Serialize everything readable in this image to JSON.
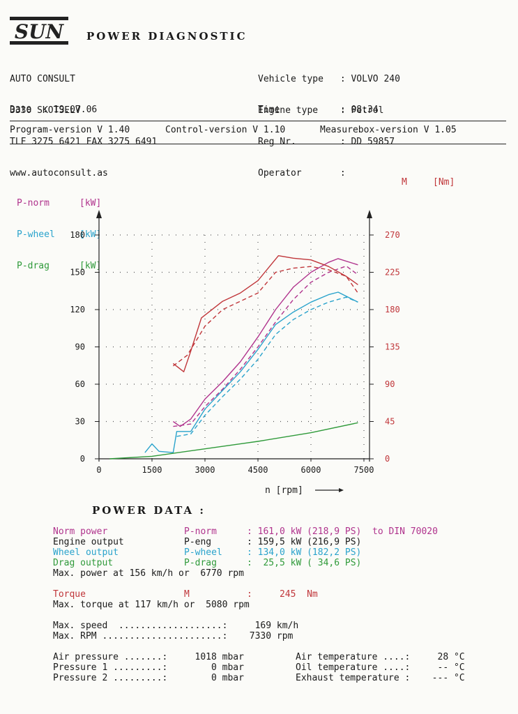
{
  "header": {
    "logo_text": "SUN",
    "title": "POWER DIAGNOSTIC",
    "company": [
      "AUTO CONSULT",
      "3330 SKOTSELV",
      "TLF 3275 6421 FAX 3275 6491",
      "www.autoconsult.as"
    ],
    "date_label": "Date  :",
    "date_value": "19.07.06",
    "vehicle": [
      {
        "label": "Vehicle type",
        "value": "VOLVO 240"
      },
      {
        "label": "Engine type",
        "value": "Petrol"
      },
      {
        "label": "Reg Nr.",
        "value": "DD 59857"
      },
      {
        "label": "Operator",
        "value": ""
      }
    ],
    "time_label": "Time",
    "time_value": "08:34",
    "versions": [
      "Program-version V 1.40",
      "Control-version V 1.10",
      "Measurebox-version V 1.05"
    ]
  },
  "legend": [
    {
      "name": "P-norm",
      "unit": "[kW]",
      "color": "#b0338d"
    },
    {
      "name": "P-wheel",
      "unit": "[kW]",
      "color": "#2aa3cc"
    },
    {
      "name": "P-drag",
      "unit": "[kW]",
      "color": "#2f9a3a"
    }
  ],
  "right_legend": {
    "name": "M",
    "unit": "[Nm]",
    "color": "#c0363a"
  },
  "chart_data": {
    "type": "line",
    "xlabel": "n [rpm]",
    "xlim": [
      0,
      7500
    ],
    "x_ticks": [
      "0",
      "1500",
      "3000",
      "4500",
      "6000",
      "7500"
    ],
    "ylim": [
      0,
      180
    ],
    "y_ticks": [
      "0",
      "30",
      "60",
      "90",
      "120",
      "150",
      "180"
    ],
    "y2lim": [
      0,
      270
    ],
    "y2_ticks": [
      "0",
      "45",
      "90",
      "135",
      "180",
      "225",
      "270"
    ],
    "grid": "dotted",
    "series": [
      {
        "name": "P-norm",
        "axis": "left",
        "color": "#b0338d",
        "style": "solid",
        "x": [
          2100,
          2300,
          2600,
          3000,
          3500,
          4000,
          4500,
          5000,
          5500,
          6000,
          6500,
          6770,
          7330
        ],
        "y": [
          30,
          26,
          32,
          48,
          62,
          78,
          98,
          120,
          138,
          150,
          158,
          161,
          156
        ]
      },
      {
        "name": "P-norm",
        "axis": "left",
        "color": "#b0338d",
        "style": "dashed",
        "x": [
          2100,
          2600,
          3000,
          3500,
          4000,
          4500,
          5000,
          5500,
          6000,
          6500,
          7000,
          7330
        ],
        "y": [
          26,
          28,
          42,
          56,
          72,
          90,
          110,
          128,
          142,
          150,
          155,
          148
        ]
      },
      {
        "name": "P-wheel",
        "axis": "left",
        "color": "#2aa3cc",
        "style": "solid",
        "x": [
          1300,
          1500,
          1700,
          2100,
          2200,
          2600,
          3000,
          3500,
          4000,
          4500,
          5000,
          5500,
          6000,
          6500,
          6770,
          7330
        ],
        "y": [
          5,
          12,
          6,
          5,
          22,
          22,
          40,
          55,
          70,
          88,
          108,
          118,
          126,
          132,
          134,
          126
        ]
      },
      {
        "name": "P-wheel",
        "axis": "left",
        "color": "#2aa3cc",
        "style": "dashed",
        "x": [
          2200,
          2600,
          3000,
          3500,
          4000,
          4500,
          5000,
          5500,
          6000,
          6500,
          7000,
          7330
        ],
        "y": [
          18,
          20,
          35,
          50,
          64,
          80,
          100,
          112,
          120,
          126,
          130,
          126
        ]
      },
      {
        "name": "P-drag",
        "axis": "left",
        "color": "#2f9a3a",
        "style": "solid",
        "x": [
          300,
          1500,
          3000,
          4500,
          6000,
          7330
        ],
        "y": [
          0,
          2,
          8,
          14,
          21,
          29
        ]
      },
      {
        "name": "M",
        "axis": "right",
        "color": "#c0363a",
        "style": "solid",
        "x": [
          2100,
          2400,
          2600,
          2900,
          3500,
          4000,
          4500,
          5080,
          5500,
          6000,
          6500,
          7000,
          7330
        ],
        "y": [
          115,
          105,
          130,
          170,
          190,
          200,
          215,
          245,
          242,
          240,
          232,
          220,
          210
        ]
      },
      {
        "name": "M",
        "axis": "right",
        "color": "#c0363a",
        "style": "dashed",
        "x": [
          2100,
          2500,
          3000,
          3500,
          4000,
          4500,
          5000,
          5500,
          6000,
          6500,
          7000,
          7330
        ],
        "y": [
          112,
          125,
          160,
          180,
          190,
          200,
          225,
          230,
          232,
          228,
          220,
          200
        ]
      }
    ]
  },
  "power_data": {
    "title": "POWER  DATA   :",
    "rows": [
      {
        "label": "Norm power",
        "key": "P-norm",
        "value": ": 161,0 kW (218,9 PS)  to DIN 70020",
        "color": "#b0338d"
      },
      {
        "label": "Engine output",
        "key": "P-eng",
        "value": ": 159,5 kW (216,9 PS)",
        "color": "#1a1a1a"
      },
      {
        "label": "Wheel output",
        "key": "P-wheel",
        "value": ": 134,0 kW (182,2 PS)",
        "color": "#2aa3cc"
      },
      {
        "label": "Drag output",
        "key": "P-drag",
        "value": ":  25,5 kW ( 34,6 PS)",
        "color": "#2f9a3a"
      }
    ],
    "max_power": "Max. power at 156 km/h or  6770 rpm",
    "torque": {
      "label": "Torque",
      "key": "M",
      "value": ":     245  Nm",
      "color": "#c0363a"
    },
    "max_torque": "Max. torque at 117 km/h or  5080 rpm",
    "max_speed": "Max. speed  ...................:     169 km/h",
    "max_rpm": "Max. RPM ......................:    7330 rpm",
    "left_conditions": [
      "Air pressure .......:     1018 mbar",
      "Pressure 1 .........:        0 mbar",
      "Pressure 2 .........:        0 mbar"
    ],
    "right_conditions": [
      "Air temperature ....:     28 °C",
      "Oil temperature ....:     -- °C",
      "Exhaust temperature :    --- °C"
    ]
  }
}
